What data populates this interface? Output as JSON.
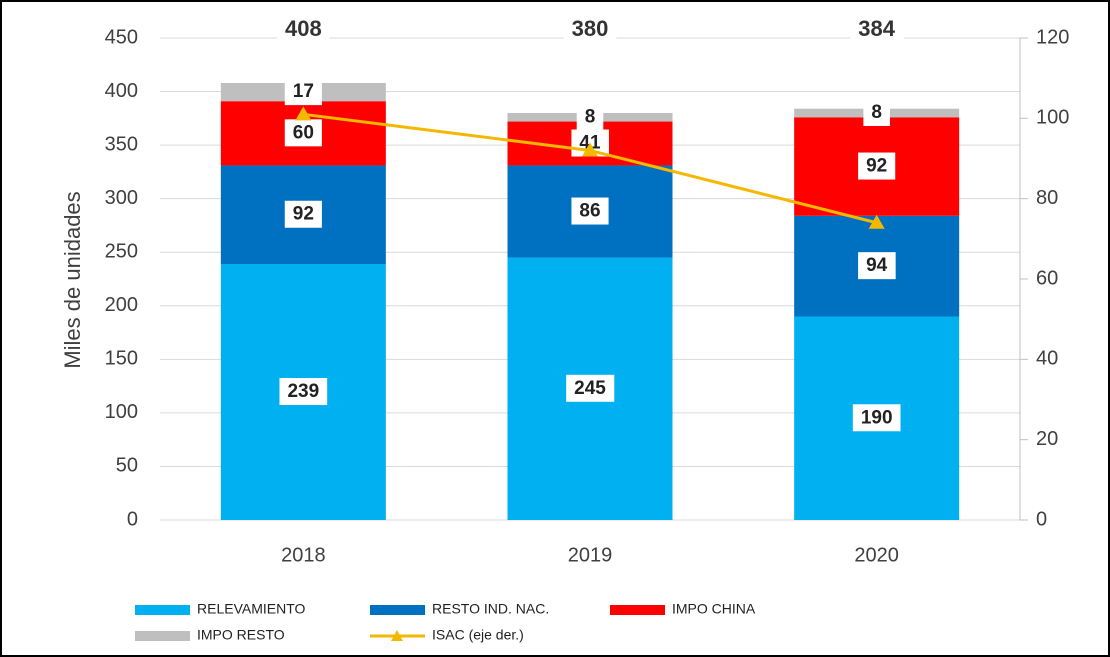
{
  "chart_data": {
    "type": "bar",
    "categories": [
      "2018",
      "2019",
      "2020"
    ],
    "series": [
      {
        "name": "RELEVAMIENTO",
        "color": "#00b0f0",
        "values": [
          239,
          245,
          190
        ]
      },
      {
        "name": "RESTO IND. NAC.",
        "color": "#0070c0",
        "values": [
          92,
          86,
          94
        ]
      },
      {
        "name": "IMPO CHINA",
        "color": "#ff0000",
        "values": [
          60,
          41,
          92
        ]
      },
      {
        "name": "IMPO RESTO",
        "color": "#bfbfbf",
        "values": [
          17,
          8,
          8
        ]
      },
      {
        "name": "ISAC (eje der.)",
        "color": "#f5b800",
        "values": [
          101,
          92,
          74
        ],
        "axis": "y2",
        "type": "line"
      }
    ],
    "totals": [
      408,
      380,
      384
    ],
    "ylabel": "Miles de unidades",
    "ylim": [
      0,
      450
    ],
    "yticks": [
      0,
      50,
      100,
      150,
      200,
      250,
      300,
      350,
      400,
      450
    ],
    "y2lim": [
      0,
      120
    ],
    "y2ticks": [
      0,
      20,
      40,
      60,
      80,
      100,
      120
    ],
    "grid": true
  }
}
